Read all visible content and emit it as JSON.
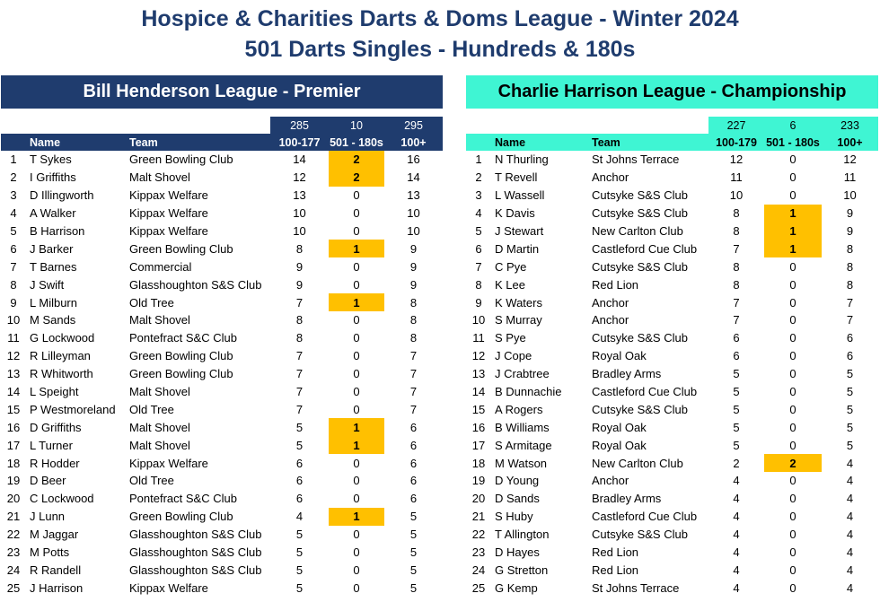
{
  "title_line1": "Hospice & Charities Darts & Doms League - Winter 2024",
  "title_line2": "501 Darts Singles - Hundreds & 180s",
  "left": {
    "league": "Bill Henderson League - Premier",
    "totals": [
      "285",
      "10",
      "295"
    ],
    "headers": {
      "name": "Name",
      "team": "Team",
      "c1": "100-177",
      "c2": "501 - 180s",
      "c3": "100+"
    },
    "rows": [
      {
        "pos": "1",
        "name": "T Sykes",
        "team": "Green Bowling Club",
        "h": "14",
        "m": "2",
        "t": "16",
        "hl": true
      },
      {
        "pos": "2",
        "name": "I Griffiths",
        "team": "Malt Shovel",
        "h": "12",
        "m": "2",
        "t": "14",
        "hl": true
      },
      {
        "pos": "3",
        "name": "D Illingworth",
        "team": "Kippax Welfare",
        "h": "13",
        "m": "0",
        "t": "13",
        "hl": false
      },
      {
        "pos": "4",
        "name": "A Walker",
        "team": "Kippax Welfare",
        "h": "10",
        "m": "0",
        "t": "10",
        "hl": false
      },
      {
        "pos": "5",
        "name": "B Harrison",
        "team": "Kippax Welfare",
        "h": "10",
        "m": "0",
        "t": "10",
        "hl": false
      },
      {
        "pos": "6",
        "name": "J Barker",
        "team": "Green Bowling Club",
        "h": "8",
        "m": "1",
        "t": "9",
        "hl": true
      },
      {
        "pos": "7",
        "name": "T Barnes",
        "team": "Commercial",
        "h": "9",
        "m": "0",
        "t": "9",
        "hl": false
      },
      {
        "pos": "8",
        "name": "J Swift",
        "team": "Glasshoughton S&S Club",
        "h": "9",
        "m": "0",
        "t": "9",
        "hl": false
      },
      {
        "pos": "9",
        "name": "L Milburn",
        "team": "Old Tree",
        "h": "7",
        "m": "1",
        "t": "8",
        "hl": true
      },
      {
        "pos": "10",
        "name": "M Sands",
        "team": "Malt Shovel",
        "h": "8",
        "m": "0",
        "t": "8",
        "hl": false
      },
      {
        "pos": "11",
        "name": "G Lockwood",
        "team": "Pontefract S&C Club",
        "h": "8",
        "m": "0",
        "t": "8",
        "hl": false
      },
      {
        "pos": "12",
        "name": "R Lilleyman",
        "team": "Green Bowling Club",
        "h": "7",
        "m": "0",
        "t": "7",
        "hl": false
      },
      {
        "pos": "13",
        "name": "R Whitworth",
        "team": "Green Bowling Club",
        "h": "7",
        "m": "0",
        "t": "7",
        "hl": false
      },
      {
        "pos": "14",
        "name": "L Speight",
        "team": "Malt Shovel",
        "h": "7",
        "m": "0",
        "t": "7",
        "hl": false
      },
      {
        "pos": "15",
        "name": "P Westmoreland",
        "team": "Old Tree",
        "h": "7",
        "m": "0",
        "t": "7",
        "hl": false
      },
      {
        "pos": "16",
        "name": "D Griffiths",
        "team": "Malt Shovel",
        "h": "5",
        "m": "1",
        "t": "6",
        "hl": true
      },
      {
        "pos": "17",
        "name": "L Turner",
        "team": "Malt Shovel",
        "h": "5",
        "m": "1",
        "t": "6",
        "hl": true
      },
      {
        "pos": "18",
        "name": "R Hodder",
        "team": "Kippax Welfare",
        "h": "6",
        "m": "0",
        "t": "6",
        "hl": false
      },
      {
        "pos": "19",
        "name": "D Beer",
        "team": "Old Tree",
        "h": "6",
        "m": "0",
        "t": "6",
        "hl": false
      },
      {
        "pos": "20",
        "name": "C Lockwood",
        "team": "Pontefract S&C Club",
        "h": "6",
        "m": "0",
        "t": "6",
        "hl": false
      },
      {
        "pos": "21",
        "name": "J Lunn",
        "team": "Green Bowling Club",
        "h": "4",
        "m": "1",
        "t": "5",
        "hl": true
      },
      {
        "pos": "22",
        "name": "M Jaggar",
        "team": "Glasshoughton S&S Club",
        "h": "5",
        "m": "0",
        "t": "5",
        "hl": false
      },
      {
        "pos": "23",
        "name": "M Potts",
        "team": "Glasshoughton S&S Club",
        "h": "5",
        "m": "0",
        "t": "5",
        "hl": false
      },
      {
        "pos": "24",
        "name": "R Randell",
        "team": "Glasshoughton S&S Club",
        "h": "5",
        "m": "0",
        "t": "5",
        "hl": false
      },
      {
        "pos": "25",
        "name": "J Harrison",
        "team": "Kippax Welfare",
        "h": "5",
        "m": "0",
        "t": "5",
        "hl": false
      }
    ]
  },
  "right": {
    "league": "Charlie Harrison League - Championship",
    "totals": [
      "227",
      "6",
      "233"
    ],
    "headers": {
      "name": "Name",
      "team": "Team",
      "c1": "100-179",
      "c2": "501 - 180s",
      "c3": "100+"
    },
    "rows": [
      {
        "pos": "1",
        "name": "N Thurling",
        "team": "St Johns Terrace",
        "h": "12",
        "m": "0",
        "t": "12",
        "hl": false
      },
      {
        "pos": "2",
        "name": "T Revell",
        "team": "Anchor",
        "h": "11",
        "m": "0",
        "t": "11",
        "hl": false
      },
      {
        "pos": "3",
        "name": "L Wassell",
        "team": "Cutsyke S&S Club",
        "h": "10",
        "m": "0",
        "t": "10",
        "hl": false
      },
      {
        "pos": "4",
        "name": "K Davis",
        "team": "Cutsyke S&S Club",
        "h": "8",
        "m": "1",
        "t": "9",
        "hl": true
      },
      {
        "pos": "5",
        "name": "J Stewart",
        "team": "New Carlton Club",
        "h": "8",
        "m": "1",
        "t": "9",
        "hl": true
      },
      {
        "pos": "6",
        "name": "D Martin",
        "team": "Castleford Cue Club",
        "h": "7",
        "m": "1",
        "t": "8",
        "hl": true
      },
      {
        "pos": "7",
        "name": "C Pye",
        "team": "Cutsyke S&S Club",
        "h": "8",
        "m": "0",
        "t": "8",
        "hl": false
      },
      {
        "pos": "8",
        "name": "K Lee",
        "team": "Red Lion",
        "h": "8",
        "m": "0",
        "t": "8",
        "hl": false
      },
      {
        "pos": "9",
        "name": "K Waters",
        "team": "Anchor",
        "h": "7",
        "m": "0",
        "t": "7",
        "hl": false
      },
      {
        "pos": "10",
        "name": "S Murray",
        "team": "Anchor",
        "h": "7",
        "m": "0",
        "t": "7",
        "hl": false
      },
      {
        "pos": "11",
        "name": "S Pye",
        "team": "Cutsyke S&S Club",
        "h": "6",
        "m": "0",
        "t": "6",
        "hl": false
      },
      {
        "pos": "12",
        "name": "J Cope",
        "team": "Royal Oak",
        "h": "6",
        "m": "0",
        "t": "6",
        "hl": false
      },
      {
        "pos": "13",
        "name": "J Crabtree",
        "team": "Bradley Arms",
        "h": "5",
        "m": "0",
        "t": "5",
        "hl": false
      },
      {
        "pos": "14",
        "name": "B Dunnachie",
        "team": "Castleford Cue Club",
        "h": "5",
        "m": "0",
        "t": "5",
        "hl": false
      },
      {
        "pos": "15",
        "name": "A Rogers",
        "team": "Cutsyke S&S Club",
        "h": "5",
        "m": "0",
        "t": "5",
        "hl": false
      },
      {
        "pos": "16",
        "name": "B Williams",
        "team": "Royal Oak",
        "h": "5",
        "m": "0",
        "t": "5",
        "hl": false
      },
      {
        "pos": "17",
        "name": "S Armitage",
        "team": "Royal Oak",
        "h": "5",
        "m": "0",
        "t": "5",
        "hl": false
      },
      {
        "pos": "18",
        "name": "M Watson",
        "team": "New Carlton Club",
        "h": "2",
        "m": "2",
        "t": "4",
        "hl": true
      },
      {
        "pos": "19",
        "name": "D Young",
        "team": "Anchor",
        "h": "4",
        "m": "0",
        "t": "4",
        "hl": false
      },
      {
        "pos": "20",
        "name": "D Sands",
        "team": "Bradley Arms",
        "h": "4",
        "m": "0",
        "t": "4",
        "hl": false
      },
      {
        "pos": "21",
        "name": "S Huby",
        "team": "Castleford Cue Club",
        "h": "4",
        "m": "0",
        "t": "4",
        "hl": false
      },
      {
        "pos": "22",
        "name": "T Allington",
        "team": "Cutsyke S&S Club",
        "h": "4",
        "m": "0",
        "t": "4",
        "hl": false
      },
      {
        "pos": "23",
        "name": "D Hayes",
        "team": "Red Lion",
        "h": "4",
        "m": "0",
        "t": "4",
        "hl": false
      },
      {
        "pos": "24",
        "name": "G Stretton",
        "team": "Red Lion",
        "h": "4",
        "m": "0",
        "t": "4",
        "hl": false
      },
      {
        "pos": "25",
        "name": "G Kemp",
        "team": "St Johns Terrace",
        "h": "4",
        "m": "0",
        "t": "4",
        "hl": false
      }
    ]
  }
}
